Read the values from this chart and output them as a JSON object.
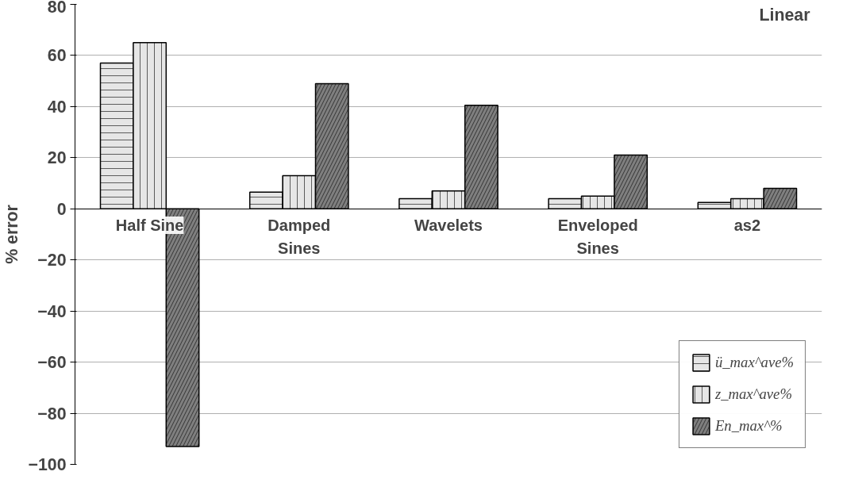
{
  "chart_data": {
    "type": "bar",
    "categories": [
      "Half Sine",
      "Damped\nSines",
      "Wavelets",
      "Enveloped\nSines",
      "as2"
    ],
    "series": [
      {
        "name": "ü_max^ave%",
        "color": "#e6e6e6",
        "values": [
          57,
          6.5,
          4,
          4,
          2.5
        ]
      },
      {
        "name": "z_max^ave%",
        "color": "#e6e6e6",
        "values": [
          65,
          13,
          7,
          5,
          4
        ]
      },
      {
        "name": "En_max^%",
        "color": "#7f7f7f",
        "values": [
          -93,
          49,
          40.5,
          21,
          8
        ]
      }
    ],
    "ylabel": "% error",
    "ylim": [
      -100,
      80
    ],
    "yticks": [
      -100,
      -80,
      -60,
      -40,
      -20,
      0,
      20,
      40,
      60,
      80
    ],
    "annotations": [
      "Linear"
    ],
    "grid": "y",
    "legend": "bottom right"
  }
}
